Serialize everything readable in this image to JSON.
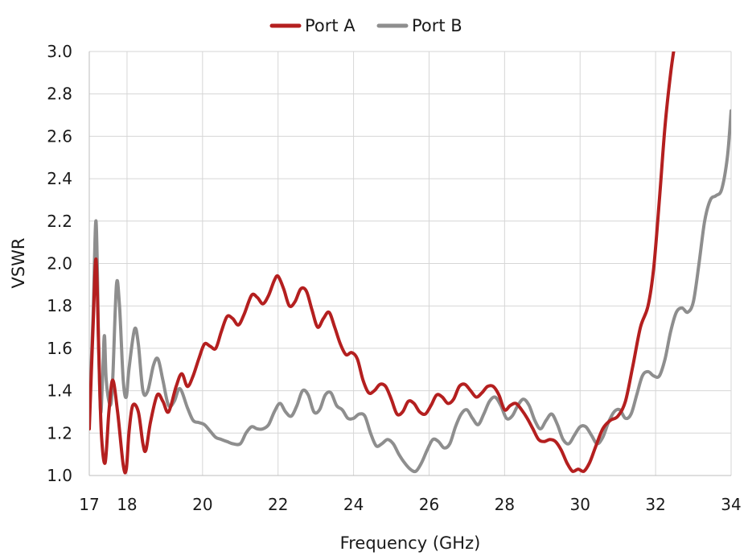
{
  "chart_data": {
    "type": "line",
    "title": "",
    "xlabel": "Frequency (GHz)",
    "ylabel": "VSWR",
    "xlim": [
      17,
      34
    ],
    "ylim": [
      1.0,
      3.0
    ],
    "xticks": [
      17,
      18,
      20,
      22,
      24,
      26,
      28,
      30,
      32,
      34
    ],
    "yticks": [
      1.0,
      1.2,
      1.4,
      1.6,
      1.8,
      2.0,
      2.2,
      2.4,
      2.6,
      2.8,
      3.0
    ],
    "ytick_labels": [
      "1.0",
      "1.2",
      "1.4",
      "1.6",
      "1.8",
      "2.0",
      "2.2",
      "2.4",
      "2.6",
      "2.8",
      "3.0"
    ],
    "grid": true,
    "legend_position": "top-center",
    "series": [
      {
        "name": "Port A",
        "color": "#b41f1f",
        "points": [
          [
            17.0,
            1.22
          ],
          [
            17.1,
            1.7
          ],
          [
            17.18,
            2.02
          ],
          [
            17.25,
            1.6
          ],
          [
            17.32,
            1.2
          ],
          [
            17.42,
            1.06
          ],
          [
            17.52,
            1.3
          ],
          [
            17.62,
            1.45
          ],
          [
            17.75,
            1.3
          ],
          [
            17.9,
            1.05
          ],
          [
            17.98,
            1.03
          ],
          [
            18.05,
            1.2
          ],
          [
            18.15,
            1.33
          ],
          [
            18.3,
            1.3
          ],
          [
            18.42,
            1.15
          ],
          [
            18.5,
            1.12
          ],
          [
            18.62,
            1.25
          ],
          [
            18.8,
            1.38
          ],
          [
            18.95,
            1.35
          ],
          [
            19.1,
            1.3
          ],
          [
            19.3,
            1.42
          ],
          [
            19.45,
            1.48
          ],
          [
            19.6,
            1.42
          ],
          [
            19.75,
            1.47
          ],
          [
            19.9,
            1.55
          ],
          [
            20.05,
            1.62
          ],
          [
            20.2,
            1.61
          ],
          [
            20.35,
            1.6
          ],
          [
            20.5,
            1.68
          ],
          [
            20.65,
            1.75
          ],
          [
            20.8,
            1.74
          ],
          [
            20.95,
            1.71
          ],
          [
            21.1,
            1.76
          ],
          [
            21.3,
            1.85
          ],
          [
            21.45,
            1.84
          ],
          [
            21.6,
            1.81
          ],
          [
            21.75,
            1.85
          ],
          [
            21.9,
            1.92
          ],
          [
            22.0,
            1.94
          ],
          [
            22.15,
            1.88
          ],
          [
            22.3,
            1.8
          ],
          [
            22.45,
            1.82
          ],
          [
            22.6,
            1.88
          ],
          [
            22.75,
            1.87
          ],
          [
            22.9,
            1.78
          ],
          [
            23.05,
            1.7
          ],
          [
            23.2,
            1.74
          ],
          [
            23.35,
            1.77
          ],
          [
            23.5,
            1.7
          ],
          [
            23.65,
            1.62
          ],
          [
            23.8,
            1.57
          ],
          [
            23.95,
            1.58
          ],
          [
            24.1,
            1.55
          ],
          [
            24.25,
            1.45
          ],
          [
            24.4,
            1.39
          ],
          [
            24.55,
            1.4
          ],
          [
            24.7,
            1.43
          ],
          [
            24.85,
            1.42
          ],
          [
            25.0,
            1.36
          ],
          [
            25.15,
            1.29
          ],
          [
            25.3,
            1.3
          ],
          [
            25.45,
            1.35
          ],
          [
            25.6,
            1.34
          ],
          [
            25.75,
            1.3
          ],
          [
            25.9,
            1.29
          ],
          [
            26.05,
            1.33
          ],
          [
            26.2,
            1.38
          ],
          [
            26.35,
            1.37
          ],
          [
            26.5,
            1.34
          ],
          [
            26.65,
            1.36
          ],
          [
            26.8,
            1.42
          ],
          [
            26.95,
            1.43
          ],
          [
            27.1,
            1.4
          ],
          [
            27.25,
            1.37
          ],
          [
            27.4,
            1.39
          ],
          [
            27.55,
            1.42
          ],
          [
            27.7,
            1.42
          ],
          [
            27.85,
            1.38
          ],
          [
            28.0,
            1.31
          ],
          [
            28.15,
            1.33
          ],
          [
            28.3,
            1.34
          ],
          [
            28.45,
            1.31
          ],
          [
            28.6,
            1.27
          ],
          [
            28.75,
            1.22
          ],
          [
            28.9,
            1.17
          ],
          [
            29.05,
            1.16
          ],
          [
            29.2,
            1.17
          ],
          [
            29.35,
            1.16
          ],
          [
            29.5,
            1.12
          ],
          [
            29.65,
            1.06
          ],
          [
            29.8,
            1.02
          ],
          [
            29.95,
            1.03
          ],
          [
            30.1,
            1.02
          ],
          [
            30.25,
            1.06
          ],
          [
            30.4,
            1.13
          ],
          [
            30.6,
            1.22
          ],
          [
            30.8,
            1.26
          ],
          [
            31.0,
            1.28
          ],
          [
            31.2,
            1.35
          ],
          [
            31.4,
            1.52
          ],
          [
            31.6,
            1.7
          ],
          [
            31.8,
            1.8
          ],
          [
            31.95,
            1.98
          ],
          [
            32.1,
            2.3
          ],
          [
            32.25,
            2.65
          ],
          [
            32.4,
            2.9
          ],
          [
            32.52,
            3.05
          ]
        ]
      },
      {
        "name": "Port B",
        "color": "#8e8e8e",
        "points": [
          [
            17.0,
            1.3
          ],
          [
            17.1,
            1.75
          ],
          [
            17.18,
            2.2
          ],
          [
            17.25,
            1.6
          ],
          [
            17.3,
            1.3
          ],
          [
            17.35,
            1.45
          ],
          [
            17.4,
            1.66
          ],
          [
            17.45,
            1.45
          ],
          [
            17.55,
            1.33
          ],
          [
            17.62,
            1.45
          ],
          [
            17.72,
            1.9
          ],
          [
            17.8,
            1.8
          ],
          [
            17.9,
            1.45
          ],
          [
            17.98,
            1.37
          ],
          [
            18.05,
            1.5
          ],
          [
            18.2,
            1.69
          ],
          [
            18.3,
            1.62
          ],
          [
            18.42,
            1.4
          ],
          [
            18.55,
            1.4
          ],
          [
            18.7,
            1.52
          ],
          [
            18.82,
            1.55
          ],
          [
            18.95,
            1.45
          ],
          [
            19.1,
            1.33
          ],
          [
            19.25,
            1.35
          ],
          [
            19.4,
            1.41
          ],
          [
            19.6,
            1.32
          ],
          [
            19.75,
            1.26
          ],
          [
            19.9,
            1.25
          ],
          [
            20.05,
            1.24
          ],
          [
            20.2,
            1.21
          ],
          [
            20.35,
            1.18
          ],
          [
            20.5,
            1.17
          ],
          [
            20.65,
            1.16
          ],
          [
            20.8,
            1.15
          ],
          [
            21.0,
            1.15
          ],
          [
            21.15,
            1.2
          ],
          [
            21.3,
            1.23
          ],
          [
            21.45,
            1.22
          ],
          [
            21.6,
            1.22
          ],
          [
            21.75,
            1.24
          ],
          [
            21.9,
            1.3
          ],
          [
            22.05,
            1.34
          ],
          [
            22.2,
            1.3
          ],
          [
            22.35,
            1.28
          ],
          [
            22.5,
            1.33
          ],
          [
            22.65,
            1.4
          ],
          [
            22.8,
            1.38
          ],
          [
            22.95,
            1.3
          ],
          [
            23.1,
            1.31
          ],
          [
            23.25,
            1.38
          ],
          [
            23.4,
            1.39
          ],
          [
            23.55,
            1.33
          ],
          [
            23.7,
            1.31
          ],
          [
            23.85,
            1.27
          ],
          [
            24.0,
            1.27
          ],
          [
            24.15,
            1.29
          ],
          [
            24.3,
            1.28
          ],
          [
            24.45,
            1.2
          ],
          [
            24.6,
            1.14
          ],
          [
            24.75,
            1.15
          ],
          [
            24.9,
            1.17
          ],
          [
            25.05,
            1.15
          ],
          [
            25.2,
            1.1
          ],
          [
            25.35,
            1.06
          ],
          [
            25.5,
            1.03
          ],
          [
            25.65,
            1.02
          ],
          [
            25.8,
            1.06
          ],
          [
            25.95,
            1.12
          ],
          [
            26.1,
            1.17
          ],
          [
            26.25,
            1.16
          ],
          [
            26.4,
            1.13
          ],
          [
            26.55,
            1.15
          ],
          [
            26.7,
            1.23
          ],
          [
            26.85,
            1.29
          ],
          [
            27.0,
            1.31
          ],
          [
            27.15,
            1.27
          ],
          [
            27.3,
            1.24
          ],
          [
            27.45,
            1.29
          ],
          [
            27.6,
            1.35
          ],
          [
            27.75,
            1.37
          ],
          [
            27.9,
            1.33
          ],
          [
            28.05,
            1.27
          ],
          [
            28.2,
            1.28
          ],
          [
            28.35,
            1.33
          ],
          [
            28.5,
            1.36
          ],
          [
            28.65,
            1.33
          ],
          [
            28.8,
            1.26
          ],
          [
            28.95,
            1.22
          ],
          [
            29.1,
            1.26
          ],
          [
            29.25,
            1.29
          ],
          [
            29.4,
            1.24
          ],
          [
            29.55,
            1.17
          ],
          [
            29.7,
            1.15
          ],
          [
            29.85,
            1.19
          ],
          [
            30.0,
            1.23
          ],
          [
            30.15,
            1.23
          ],
          [
            30.3,
            1.19
          ],
          [
            30.45,
            1.15
          ],
          [
            30.6,
            1.18
          ],
          [
            30.75,
            1.25
          ],
          [
            30.9,
            1.3
          ],
          [
            31.05,
            1.31
          ],
          [
            31.2,
            1.27
          ],
          [
            31.35,
            1.29
          ],
          [
            31.5,
            1.38
          ],
          [
            31.65,
            1.47
          ],
          [
            31.8,
            1.49
          ],
          [
            31.95,
            1.47
          ],
          [
            32.1,
            1.47
          ],
          [
            32.25,
            1.55
          ],
          [
            32.4,
            1.68
          ],
          [
            32.55,
            1.77
          ],
          [
            32.7,
            1.79
          ],
          [
            32.85,
            1.77
          ],
          [
            33.0,
            1.82
          ],
          [
            33.15,
            2.0
          ],
          [
            33.3,
            2.2
          ],
          [
            33.45,
            2.3
          ],
          [
            33.6,
            2.32
          ],
          [
            33.75,
            2.35
          ],
          [
            33.9,
            2.5
          ],
          [
            34.0,
            2.72
          ]
        ]
      }
    ]
  }
}
